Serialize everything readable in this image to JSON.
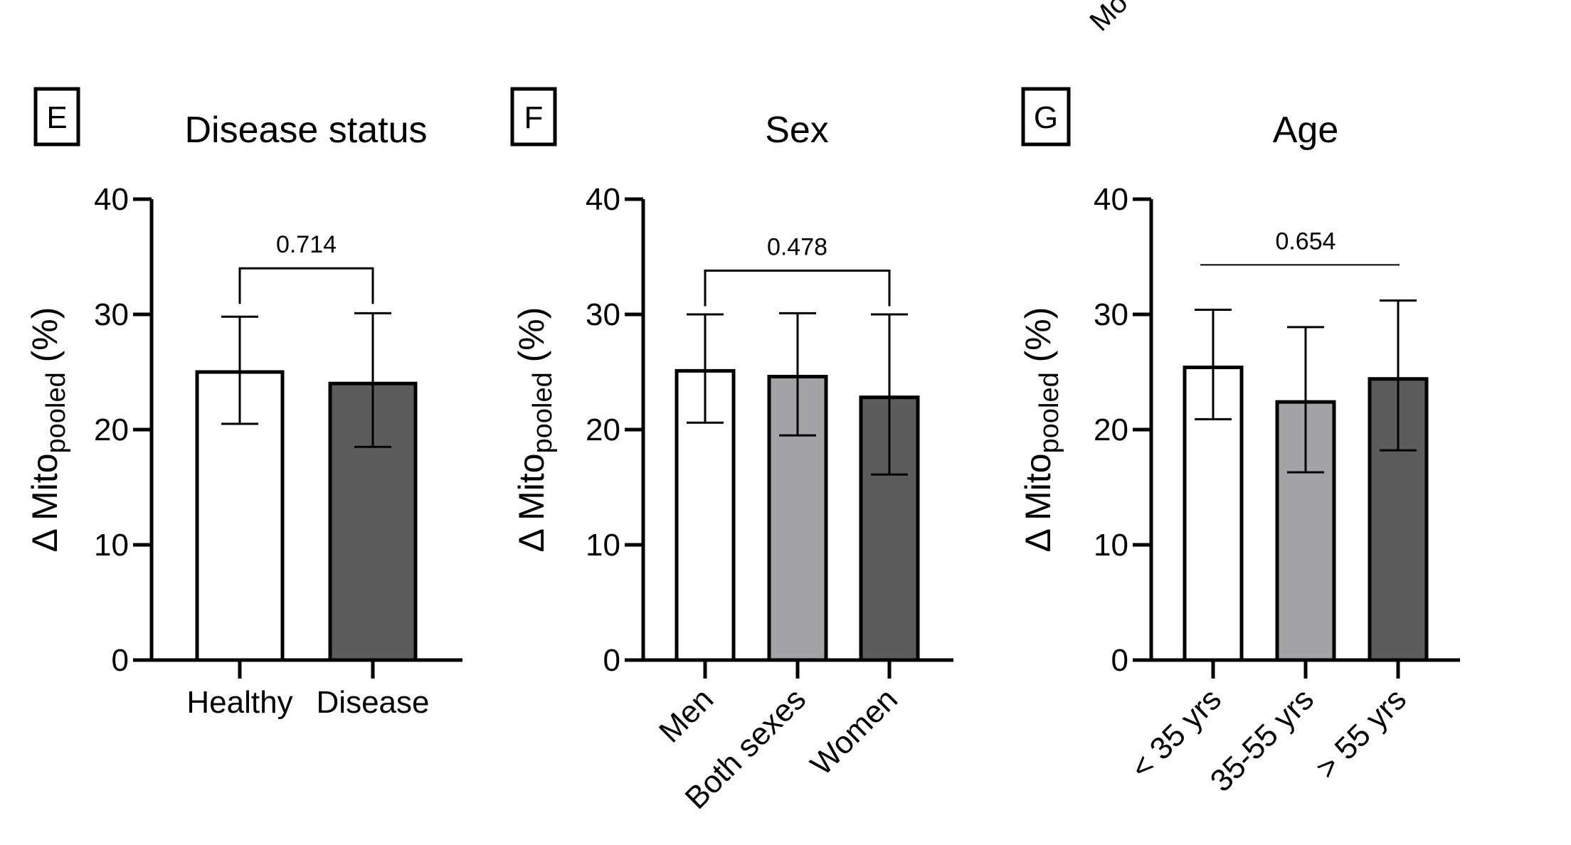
{
  "top_fragment": "Mo",
  "chart_data": [
    {
      "panel": "E",
      "type": "bar",
      "title": "Disease status",
      "ylabel_main": "Δ Mito",
      "ylabel_sub": "pooled",
      "ylabel_unit": "(%)",
      "ylim": [
        0,
        40
      ],
      "yticks": [
        "0",
        "10",
        "20",
        "30",
        "40"
      ],
      "categories": [
        "Healthy",
        "Disease"
      ],
      "values": [
        25.0,
        24.0
      ],
      "error_low": [
        20.5,
        18.5
      ],
      "error_high": [
        29.8,
        30.1
      ],
      "colors": [
        "#ffffff",
        "#5c5c5c"
      ],
      "tick_labels_rotated": false,
      "comparison": {
        "label": "0.714",
        "from": 0,
        "to": 1,
        "style": "bracket",
        "y": 34
      }
    },
    {
      "panel": "F",
      "type": "bar",
      "title": "Sex",
      "ylabel_main": "Δ Mito",
      "ylabel_sub": "pooled",
      "ylabel_unit": "(%)",
      "ylim": [
        0,
        40
      ],
      "yticks": [
        "0",
        "10",
        "20",
        "30",
        "40"
      ],
      "categories": [
        "Men",
        "Both sexes",
        "Women"
      ],
      "values": [
        25.1,
        24.6,
        22.8
      ],
      "error_low": [
        20.6,
        19.5,
        16.1
      ],
      "error_high": [
        30.0,
        30.1,
        30.0
      ],
      "colors": [
        "#ffffff",
        "#a3a3a6",
        "#5c5c5c"
      ],
      "tick_labels_rotated": true,
      "comparison": {
        "label": "0.478",
        "from": 0,
        "to": 2,
        "style": "bracket",
        "y": 33.8
      }
    },
    {
      "panel": "G",
      "type": "bar",
      "title": "Age",
      "ylabel_main": "Δ Mito",
      "ylabel_sub": "pooled",
      "ylabel_unit": "(%)",
      "ylim": [
        0,
        40
      ],
      "yticks": [
        "0",
        "10",
        "20",
        "30",
        "40"
      ],
      "categories": [
        "< 35 yrs",
        "35-55 yrs",
        "> 55 yrs"
      ],
      "values": [
        25.4,
        22.4,
        24.4
      ],
      "error_low": [
        20.9,
        16.3,
        18.2
      ],
      "error_high": [
        30.4,
        28.9,
        31.2
      ],
      "colors": [
        "#ffffff",
        "#a3a3a6",
        "#5c5c5c"
      ],
      "tick_labels_rotated": true,
      "comparison": {
        "label": "0.654",
        "from": 0,
        "to": 2,
        "style": "line",
        "y": 34.3
      }
    }
  ]
}
